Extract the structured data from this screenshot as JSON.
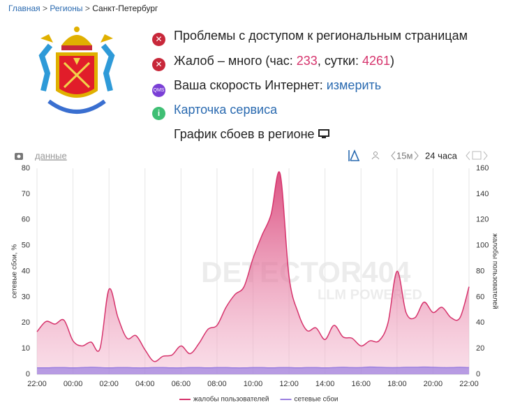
{
  "breadcrumbs": {
    "items": [
      "Главная",
      "Регионы",
      "Санкт-Петербург"
    ],
    "separator": ">"
  },
  "status": {
    "access": "Проблемы с доступом к региональным страницам",
    "complaints": {
      "prefix": "Жалоб – много (час: ",
      "hour": 233,
      "middle": ", сутки: ",
      "day": 4261,
      "suffix": ")"
    },
    "speed": {
      "icon": "QMS",
      "text": "Ваша скорость Интернет: ",
      "link": "измерить"
    },
    "card": {
      "icon": "i",
      "link": "Карточка сервиса"
    },
    "graph": "График сбоев в регионе"
  },
  "toolbar": {
    "data_link": "данные",
    "interval": "15м",
    "period": "24 часа"
  },
  "chart_data": {
    "type": "line",
    "watermark": "DETECTOR404",
    "watermark_sub": "LLM POWERED",
    "categories": [
      "22:00",
      null,
      null,
      null,
      "00:00",
      null,
      null,
      null,
      "02:00",
      null,
      null,
      null,
      "04:00",
      null,
      null,
      null,
      "06:00",
      null,
      null,
      null,
      "08:00",
      null,
      null,
      null,
      "10:00",
      null,
      null,
      null,
      "12:00",
      null,
      null,
      null,
      "14:00",
      null,
      null,
      null,
      "16:00",
      null,
      null,
      null,
      "18:00",
      null,
      null,
      null,
      "20:00",
      null,
      null,
      null,
      "22:00"
    ],
    "series": [
      {
        "name": "жалобы пользователей",
        "color": "#d6336c",
        "axis": "y2",
        "values": [
          33,
          41,
          39,
          42,
          26,
          22,
          25,
          20,
          66,
          44,
          28,
          30,
          19,
          10,
          14,
          15,
          22,
          16,
          24,
          35,
          38,
          52,
          62,
          68,
          90,
          108,
          124,
          156,
          76,
          48,
          34,
          36,
          27,
          38,
          29,
          28,
          22,
          26,
          26,
          40,
          80,
          48,
          44,
          56,
          48,
          52,
          44,
          44,
          68
        ]
      },
      {
        "name": "сетевые сбои",
        "color": "#9b7fe0",
        "values": [
          2.5,
          2.5,
          2.6,
          2.6,
          2.5,
          2.6,
          2.7,
          2.6,
          2.5,
          2.6,
          2.6,
          2.5,
          2.5,
          2.6,
          2.6,
          2.5,
          2.5,
          2.6,
          2.6,
          2.5,
          2.6,
          2.6,
          2.5,
          2.5,
          2.6,
          2.6,
          2.5,
          2.6,
          2.6,
          2.5,
          2.6,
          2.6,
          2.5,
          2.6,
          2.7,
          2.6,
          2.6,
          2.8,
          2.7,
          2.6,
          2.6,
          2.7,
          2.7,
          2.8,
          2.7,
          2.6,
          2.6,
          2.7,
          2.6
        ]
      }
    ],
    "ylabel": "сетевые сбои, %",
    "y2label": "жалобы пользователей",
    "ylim": [
      0,
      80
    ],
    "yticks": [
      0,
      10,
      20,
      30,
      40,
      50,
      60,
      70,
      80
    ],
    "y2lim": [
      0,
      160
    ],
    "y2ticks": [
      0,
      20,
      40,
      60,
      80,
      100,
      120,
      140,
      160
    ],
    "grid": true
  }
}
